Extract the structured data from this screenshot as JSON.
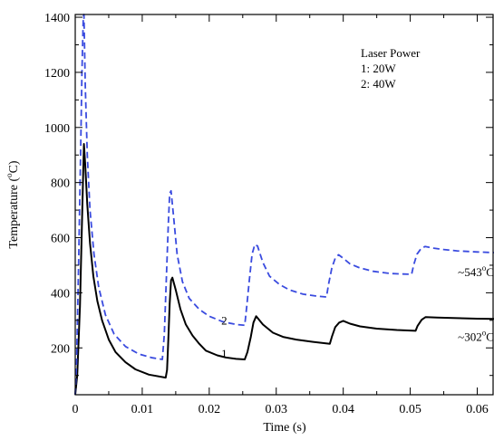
{
  "chart_data": {
    "type": "line",
    "xlabel": "Time (s)",
    "ylabel_parts": {
      "prefix": "Temperature (",
      "sup": "o",
      "suffix": "C)"
    },
    "xlim": [
      0,
      0.0625
    ],
    "ylim": [
      30,
      1410
    ],
    "x_ticks": [
      0,
      0.01,
      0.02,
      0.03,
      0.04,
      0.05,
      0.06
    ],
    "x_tick_labels": [
      "0",
      "0.01",
      "0.02",
      "0.03",
      "0.04",
      "0.05",
      "0.06"
    ],
    "x_minor_ticks": [
      0.005,
      0.015,
      0.025,
      0.035,
      0.045,
      0.055
    ],
    "y_ticks": [
      200,
      400,
      600,
      800,
      1000,
      1200,
      1400
    ],
    "y_tick_labels": [
      "200",
      "400",
      "600",
      "800",
      "1000",
      "1200",
      "1400"
    ],
    "y_minor_ticks": [
      100,
      300,
      500,
      700,
      900,
      1100,
      1300
    ],
    "grid": false,
    "legend": {
      "title": "Laser Power",
      "entries": [
        "1: 20W",
        "2: 40W"
      ],
      "placement": "top-right"
    },
    "series": [
      {
        "label": "1",
        "color": "#000000",
        "style": "solid",
        "points": [
          [
            0.0,
            30
          ],
          [
            0.0003,
            100
          ],
          [
            0.0007,
            350
          ],
          [
            0.001,
            650
          ],
          [
            0.0012,
            850
          ],
          [
            0.0013,
            940
          ],
          [
            0.0015,
            860
          ],
          [
            0.0018,
            720
          ],
          [
            0.0022,
            580
          ],
          [
            0.0027,
            460
          ],
          [
            0.0033,
            370
          ],
          [
            0.004,
            300
          ],
          [
            0.005,
            230
          ],
          [
            0.006,
            185
          ],
          [
            0.0075,
            148
          ],
          [
            0.009,
            122
          ],
          [
            0.011,
            103
          ],
          [
            0.0135,
            92
          ],
          [
            0.0137,
            120
          ],
          [
            0.0139,
            230
          ],
          [
            0.0141,
            360
          ],
          [
            0.0143,
            445
          ],
          [
            0.0145,
            455
          ],
          [
            0.015,
            410
          ],
          [
            0.0157,
            340
          ],
          [
            0.0165,
            285
          ],
          [
            0.0175,
            245
          ],
          [
            0.0185,
            215
          ],
          [
            0.0195,
            190
          ],
          [
            0.0212,
            173
          ],
          [
            0.0225,
            165
          ],
          [
            0.024,
            160
          ],
          [
            0.0253,
            158
          ],
          [
            0.0257,
            185
          ],
          [
            0.0262,
            240
          ],
          [
            0.0266,
            292
          ],
          [
            0.027,
            315
          ],
          [
            0.028,
            285
          ],
          [
            0.0295,
            255
          ],
          [
            0.031,
            240
          ],
          [
            0.033,
            230
          ],
          [
            0.0355,
            222
          ],
          [
            0.038,
            215
          ],
          [
            0.0383,
            240
          ],
          [
            0.0388,
            275
          ],
          [
            0.0394,
            292
          ],
          [
            0.04,
            298
          ],
          [
            0.041,
            288
          ],
          [
            0.0425,
            278
          ],
          [
            0.045,
            270
          ],
          [
            0.048,
            265
          ],
          [
            0.0508,
            262
          ],
          [
            0.0511,
            280
          ],
          [
            0.0517,
            302
          ],
          [
            0.0523,
            312
          ],
          [
            0.054,
            310
          ],
          [
            0.057,
            308
          ],
          [
            0.06,
            306
          ],
          [
            0.0625,
            305
          ]
        ]
      },
      {
        "label": "2",
        "color": "#3a4bdf",
        "style": "dashed",
        "points": [
          [
            0.0,
            30
          ],
          [
            0.0002,
            150
          ],
          [
            0.0005,
            500
          ],
          [
            0.0008,
            900
          ],
          [
            0.001,
            1200
          ],
          [
            0.0012,
            1400
          ],
          [
            0.0013,
            1410
          ],
          [
            0.0015,
            1150
          ],
          [
            0.0018,
            900
          ],
          [
            0.0022,
            700
          ],
          [
            0.0028,
            540
          ],
          [
            0.0035,
            420
          ],
          [
            0.0045,
            320
          ],
          [
            0.0058,
            250
          ],
          [
            0.0075,
            205
          ],
          [
            0.0095,
            178
          ],
          [
            0.0115,
            164
          ],
          [
            0.013,
            158
          ],
          [
            0.0133,
            250
          ],
          [
            0.0136,
            450
          ],
          [
            0.0139,
            650
          ],
          [
            0.0141,
            760
          ],
          [
            0.0143,
            770
          ],
          [
            0.0147,
            670
          ],
          [
            0.0152,
            540
          ],
          [
            0.016,
            440
          ],
          [
            0.017,
            380
          ],
          [
            0.0185,
            340
          ],
          [
            0.02,
            315
          ],
          [
            0.022,
            295
          ],
          [
            0.024,
            285
          ],
          [
            0.0253,
            282
          ],
          [
            0.0256,
            350
          ],
          [
            0.026,
            450
          ],
          [
            0.0264,
            540
          ],
          [
            0.0268,
            575
          ],
          [
            0.0272,
            570
          ],
          [
            0.028,
            510
          ],
          [
            0.029,
            460
          ],
          [
            0.0305,
            430
          ],
          [
            0.032,
            410
          ],
          [
            0.034,
            395
          ],
          [
            0.036,
            388
          ],
          [
            0.0375,
            385
          ],
          [
            0.0378,
            430
          ],
          [
            0.0383,
            490
          ],
          [
            0.0388,
            525
          ],
          [
            0.0393,
            538
          ],
          [
            0.04,
            525
          ],
          [
            0.041,
            505
          ],
          [
            0.0425,
            490
          ],
          [
            0.0445,
            478
          ],
          [
            0.047,
            470
          ],
          [
            0.049,
            468
          ],
          [
            0.0502,
            467
          ],
          [
            0.0505,
            500
          ],
          [
            0.051,
            540
          ],
          [
            0.0516,
            560
          ],
          [
            0.0522,
            568
          ],
          [
            0.0535,
            562
          ],
          [
            0.055,
            557
          ],
          [
            0.057,
            552
          ],
          [
            0.06,
            548
          ],
          [
            0.0625,
            546
          ]
        ]
      }
    ],
    "annotations": [
      {
        "text": "1",
        "x": 0.0218,
        "y": 165
      },
      {
        "text": "2",
        "x": 0.0218,
        "y": 285
      },
      {
        "text": "~543°C",
        "base": "~543",
        "sup": "o",
        "unit": "C",
        "x": 0.0598,
        "y": 460
      },
      {
        "text": "~302°C",
        "base": "~302",
        "sup": "o",
        "unit": "C",
        "x": 0.0598,
        "y": 225
      }
    ]
  }
}
